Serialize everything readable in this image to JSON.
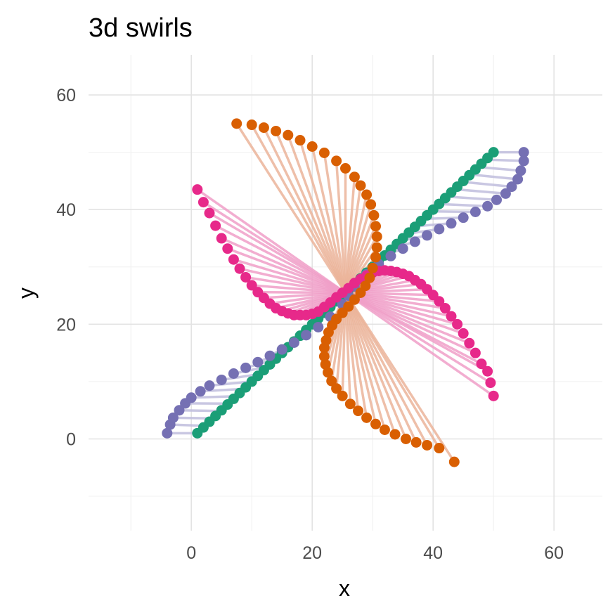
{
  "chart_data": {
    "type": "scatter",
    "title": "3d swirls",
    "xlabel": "x",
    "ylabel": "y",
    "xlim": [
      -17,
      68
    ],
    "ylim": [
      -16,
      67
    ],
    "x_ticks": [
      0,
      20,
      40,
      60
    ],
    "y_ticks": [
      0,
      20,
      40,
      60
    ],
    "grid": true,
    "legend": "none",
    "series": [
      {
        "color": "#1B9E77",
        "line_color": "#1B9E77",
        "points": [
          [
            1,
            1
          ],
          [
            50,
            50
          ]
        ],
        "segments": false
      },
      {
        "color": "#7570B3",
        "line_color": "#BFBDDD",
        "points": [
          [
            -4,
            1
          ],
          [
            -3.5,
            2.5
          ],
          [
            -3,
            3.7
          ],
          [
            -2,
            5
          ],
          [
            -1,
            6.2
          ],
          [
            0,
            7.2
          ],
          [
            1.5,
            8.3
          ],
          [
            3,
            9.3
          ],
          [
            5,
            10.3
          ],
          [
            7,
            11.4
          ],
          [
            9,
            12.4
          ],
          [
            11,
            13.4
          ],
          [
            13,
            14.5
          ],
          [
            15,
            15.6
          ],
          [
            17,
            16.8
          ],
          [
            19,
            18.1
          ],
          [
            21,
            19.5
          ],
          [
            23,
            21.3
          ],
          [
            25,
            23.5
          ],
          [
            26,
            25
          ],
          [
            27,
            26.6
          ],
          [
            29,
            28.7
          ],
          [
            31,
            30.5
          ],
          [
            33,
            31.9
          ],
          [
            35,
            33.2
          ],
          [
            37,
            34.4
          ],
          [
            39,
            35.5
          ],
          [
            41,
            36.6
          ],
          [
            43,
            37.6
          ],
          [
            45,
            38.6
          ],
          [
            47,
            39.6
          ],
          [
            49,
            40.6
          ],
          [
            50.5,
            41.7
          ],
          [
            52,
            42.8
          ],
          [
            53,
            44
          ],
          [
            54,
            45.3
          ],
          [
            54.5,
            46.8
          ],
          [
            55,
            48.5
          ],
          [
            55,
            50
          ]
        ],
        "segments": true,
        "segment_target": "green"
      },
      {
        "color": "#E7298A",
        "line_color": "#F09FC8",
        "points": [
          [
            1,
            43.5
          ],
          [
            2,
            41.3
          ],
          [
            3,
            39.4
          ],
          [
            4,
            37.2
          ],
          [
            5,
            35
          ],
          [
            6,
            33.2
          ],
          [
            7,
            31.3
          ],
          [
            8,
            29.7
          ],
          [
            9,
            28.2
          ],
          [
            10,
            26.8
          ],
          [
            11,
            25.6
          ],
          [
            12,
            24.6
          ],
          [
            13,
            23.6
          ],
          [
            14,
            22.8
          ],
          [
            15,
            22.3
          ],
          [
            16,
            21.9
          ],
          [
            17,
            21.6
          ],
          [
            18,
            21.6
          ],
          [
            19,
            21.6
          ],
          [
            20,
            21.8
          ],
          [
            21,
            22.2
          ],
          [
            22,
            23
          ],
          [
            23,
            23.8
          ],
          [
            24,
            24.7
          ],
          [
            25,
            25.5
          ],
          [
            26,
            26.3
          ],
          [
            27,
            27.2
          ],
          [
            28,
            27.9
          ],
          [
            29,
            28.5
          ],
          [
            30,
            29
          ],
          [
            31,
            29.3
          ],
          [
            32,
            29.4
          ],
          [
            33,
            29.3
          ],
          [
            34,
            29.1
          ],
          [
            35,
            28.8
          ],
          [
            36,
            28.4
          ],
          [
            37,
            27.7
          ],
          [
            38,
            27
          ],
          [
            39,
            26.1
          ],
          [
            40,
            25.1
          ],
          [
            41,
            24
          ],
          [
            42,
            22.8
          ],
          [
            43,
            21.4
          ],
          [
            44,
            20
          ],
          [
            45,
            18.4
          ],
          [
            46,
            16.7
          ],
          [
            47,
            15
          ],
          [
            48,
            13.1
          ],
          [
            49,
            11.8
          ],
          [
            49.5,
            9.8
          ],
          [
            50,
            7.5
          ]
        ],
        "segments": true,
        "segment_target": "center"
      },
      {
        "color": "#D95F02",
        "line_color": "#EBB49A",
        "points": [
          [
            7.5,
            55
          ],
          [
            10,
            54.8
          ],
          [
            12,
            54.3
          ],
          [
            14,
            53.7
          ],
          [
            16,
            53
          ],
          [
            18,
            52.1
          ],
          [
            20,
            51
          ],
          [
            22,
            49.9
          ],
          [
            24,
            48.5
          ],
          [
            25.5,
            47.2
          ],
          [
            27,
            45.7
          ],
          [
            28,
            44.2
          ],
          [
            29,
            42.6
          ],
          [
            29.7,
            40.9
          ],
          [
            30.2,
            39
          ],
          [
            30.5,
            37.1
          ],
          [
            30.7,
            35.3
          ],
          [
            30.7,
            33.4
          ],
          [
            30.5,
            31.7
          ],
          [
            30,
            29.8
          ],
          [
            29.5,
            28.1
          ],
          [
            28.8,
            26.7
          ],
          [
            28,
            25.5
          ],
          [
            27,
            24.3
          ],
          [
            26,
            23.1
          ],
          [
            25,
            22
          ],
          [
            24,
            20.9
          ],
          [
            23.3,
            19.8
          ],
          [
            22.7,
            18.6
          ],
          [
            22.3,
            17.2
          ],
          [
            22,
            15.9
          ],
          [
            22,
            14.4
          ],
          [
            22.2,
            13
          ],
          [
            22.6,
            11.6
          ],
          [
            23.2,
            10.1
          ],
          [
            24,
            8.8
          ],
          [
            25,
            7.5
          ],
          [
            26.3,
            6.1
          ],
          [
            27.6,
            4.9
          ],
          [
            29,
            3.7
          ],
          [
            30.5,
            2.6
          ],
          [
            32,
            1.6
          ],
          [
            33.7,
            0.8
          ],
          [
            35.5,
            0
          ],
          [
            37.2,
            -0.6
          ],
          [
            39,
            -1.1
          ],
          [
            41,
            -1.6
          ],
          [
            43.5,
            -4
          ]
        ],
        "segments": true,
        "segment_target": "center"
      }
    ]
  }
}
